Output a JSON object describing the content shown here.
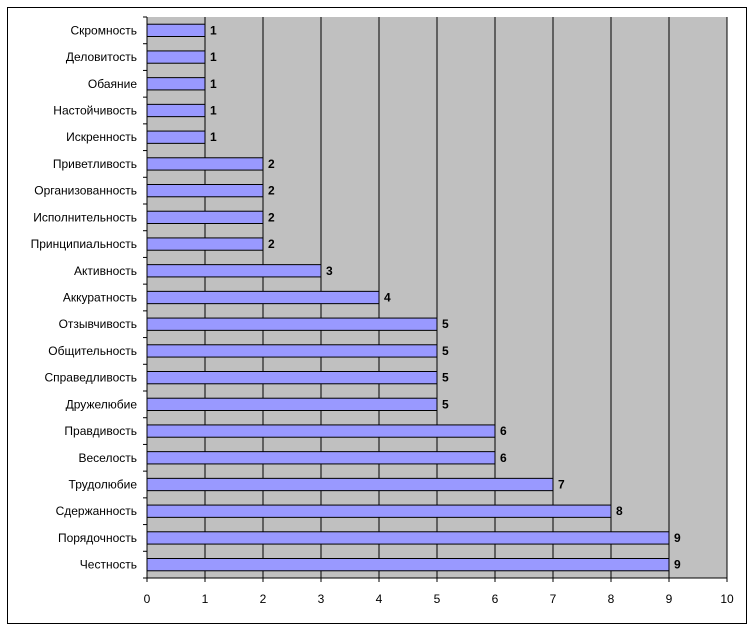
{
  "chart_data": {
    "type": "bar",
    "orientation": "horizontal",
    "categories": [
      "Скромность",
      "Деловитость",
      "Обаяние",
      "Настойчивость",
      "Искренность",
      "Приветливость",
      "Организованность",
      "Исполнительность",
      "Принципиальность",
      "Активность",
      "Аккуратность",
      "Отзывчивость",
      "Общительность",
      "Справедливость",
      "Дружелюбие",
      "Правдивость",
      "Веселость",
      "Трудолюбие",
      "Сдержанность",
      "Порядочность",
      "Честность"
    ],
    "values": [
      1,
      1,
      1,
      1,
      1,
      2,
      2,
      2,
      2,
      3,
      4,
      5,
      5,
      5,
      5,
      6,
      6,
      7,
      8,
      9,
      9
    ],
    "xlim": [
      0,
      10
    ],
    "x_ticks": [
      "0",
      "1",
      "2",
      "3",
      "4",
      "5",
      "6",
      "7",
      "8",
      "9",
      "10"
    ],
    "grid": "vertical",
    "legend": "none",
    "data_labels": true,
    "colors": {
      "plot_bg": "#c0c0c0",
      "bar_fill": "#9999ff",
      "bar_stroke": "#000000",
      "grid": "#000000"
    }
  }
}
